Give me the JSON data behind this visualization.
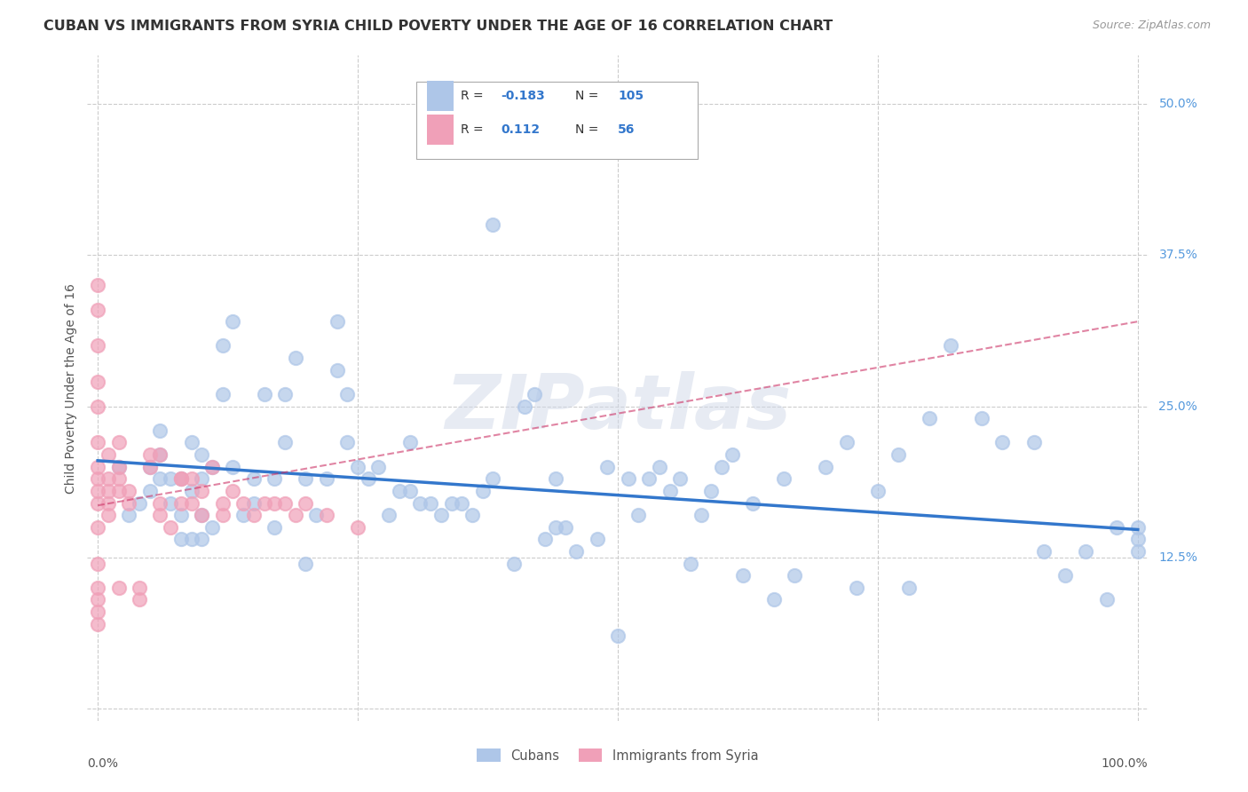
{
  "title": "CUBAN VS IMMIGRANTS FROM SYRIA CHILD POVERTY UNDER THE AGE OF 16 CORRELATION CHART",
  "source": "Source: ZipAtlas.com",
  "ylabel": "Child Poverty Under the Age of 16",
  "yticks": [
    0.0,
    0.125,
    0.25,
    0.375,
    0.5
  ],
  "ytick_labels": [
    "",
    "12.5%",
    "25.0%",
    "37.5%",
    "50.0%"
  ],
  "watermark": "ZIPatlas",
  "bg_color": "#ffffff",
  "grid_color": "#cccccc",
  "xlim": [
    -0.01,
    1.01
  ],
  "ylim": [
    -0.01,
    0.54
  ],
  "cubans": {
    "x": [
      0.02,
      0.03,
      0.04,
      0.05,
      0.05,
      0.06,
      0.06,
      0.06,
      0.07,
      0.07,
      0.08,
      0.08,
      0.08,
      0.09,
      0.09,
      0.09,
      0.1,
      0.1,
      0.1,
      0.1,
      0.11,
      0.11,
      0.12,
      0.12,
      0.13,
      0.13,
      0.14,
      0.15,
      0.15,
      0.16,
      0.17,
      0.17,
      0.18,
      0.18,
      0.19,
      0.2,
      0.2,
      0.21,
      0.22,
      0.23,
      0.23,
      0.24,
      0.24,
      0.25,
      0.26,
      0.27,
      0.28,
      0.29,
      0.3,
      0.3,
      0.31,
      0.32,
      0.33,
      0.34,
      0.35,
      0.36,
      0.37,
      0.38,
      0.38,
      0.4,
      0.41,
      0.42,
      0.43,
      0.44,
      0.44,
      0.45,
      0.46,
      0.48,
      0.49,
      0.5,
      0.51,
      0.52,
      0.53,
      0.54,
      0.55,
      0.56,
      0.57,
      0.58,
      0.59,
      0.6,
      0.61,
      0.62,
      0.63,
      0.65,
      0.66,
      0.67,
      0.7,
      0.72,
      0.73,
      0.75,
      0.77,
      0.78,
      0.8,
      0.82,
      0.85,
      0.87,
      0.9,
      0.91,
      0.93,
      0.95,
      0.97,
      0.98,
      1.0,
      1.0,
      1.0
    ],
    "y": [
      0.2,
      0.16,
      0.17,
      0.18,
      0.2,
      0.19,
      0.21,
      0.23,
      0.17,
      0.19,
      0.14,
      0.16,
      0.19,
      0.14,
      0.18,
      0.22,
      0.14,
      0.16,
      0.19,
      0.21,
      0.15,
      0.2,
      0.26,
      0.3,
      0.2,
      0.32,
      0.16,
      0.17,
      0.19,
      0.26,
      0.15,
      0.19,
      0.22,
      0.26,
      0.29,
      0.12,
      0.19,
      0.16,
      0.19,
      0.28,
      0.32,
      0.22,
      0.26,
      0.2,
      0.19,
      0.2,
      0.16,
      0.18,
      0.18,
      0.22,
      0.17,
      0.17,
      0.16,
      0.17,
      0.17,
      0.16,
      0.18,
      0.19,
      0.4,
      0.12,
      0.25,
      0.26,
      0.14,
      0.15,
      0.19,
      0.15,
      0.13,
      0.14,
      0.2,
      0.06,
      0.19,
      0.16,
      0.19,
      0.2,
      0.18,
      0.19,
      0.12,
      0.16,
      0.18,
      0.2,
      0.21,
      0.11,
      0.17,
      0.09,
      0.19,
      0.11,
      0.2,
      0.22,
      0.1,
      0.18,
      0.21,
      0.1,
      0.24,
      0.3,
      0.24,
      0.22,
      0.22,
      0.13,
      0.11,
      0.13,
      0.09,
      0.15,
      0.13,
      0.14,
      0.15
    ],
    "R": -0.183,
    "N": 105,
    "scatter_color": "#aec6e8",
    "line_color": "#3377cc",
    "trend_x0": 0.0,
    "trend_x1": 1.0,
    "trend_y0": 0.205,
    "trend_y1": 0.148
  },
  "syrians": {
    "x": [
      0.0,
      0.0,
      0.0,
      0.0,
      0.0,
      0.0,
      0.0,
      0.0,
      0.0,
      0.0,
      0.0,
      0.0,
      0.0,
      0.0,
      0.0,
      0.0,
      0.01,
      0.01,
      0.01,
      0.01,
      0.01,
      0.02,
      0.02,
      0.02,
      0.02,
      0.02,
      0.03,
      0.03,
      0.04,
      0.04,
      0.05,
      0.05,
      0.06,
      0.06,
      0.06,
      0.07,
      0.08,
      0.08,
      0.08,
      0.09,
      0.09,
      0.1,
      0.1,
      0.11,
      0.12,
      0.12,
      0.13,
      0.14,
      0.15,
      0.16,
      0.17,
      0.18,
      0.19,
      0.2,
      0.22,
      0.25
    ],
    "y": [
      0.35,
      0.33,
      0.3,
      0.27,
      0.25,
      0.22,
      0.2,
      0.19,
      0.18,
      0.17,
      0.15,
      0.12,
      0.1,
      0.09,
      0.08,
      0.07,
      0.21,
      0.19,
      0.18,
      0.17,
      0.16,
      0.22,
      0.2,
      0.19,
      0.18,
      0.1,
      0.18,
      0.17,
      0.1,
      0.09,
      0.21,
      0.2,
      0.21,
      0.17,
      0.16,
      0.15,
      0.19,
      0.19,
      0.17,
      0.19,
      0.17,
      0.18,
      0.16,
      0.2,
      0.17,
      0.16,
      0.18,
      0.17,
      0.16,
      0.17,
      0.17,
      0.17,
      0.16,
      0.17,
      0.16,
      0.15
    ],
    "R": 0.112,
    "N": 56,
    "scatter_color": "#f0a0b8",
    "line_color": "#cc3366",
    "trend_x0": 0.0,
    "trend_x1": 0.25,
    "trend_y0": 0.175,
    "trend_y1": 0.195
  }
}
